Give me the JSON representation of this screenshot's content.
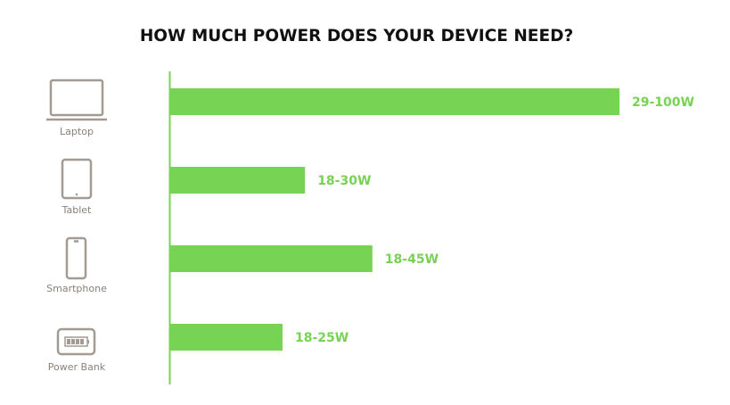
{
  "chart_data": {
    "type": "bar",
    "title": "HOW MUCH POWER DOES YOUR DEVICE NEED?",
    "categories": [
      "Laptop",
      "Tablet",
      "Smartphone",
      "Power Bank"
    ],
    "values": [
      100,
      30,
      45,
      25
    ],
    "value_labels": [
      "29-100W",
      "18-30W",
      "18-45W",
      "18-25W"
    ],
    "color": "#77d353"
  }
}
